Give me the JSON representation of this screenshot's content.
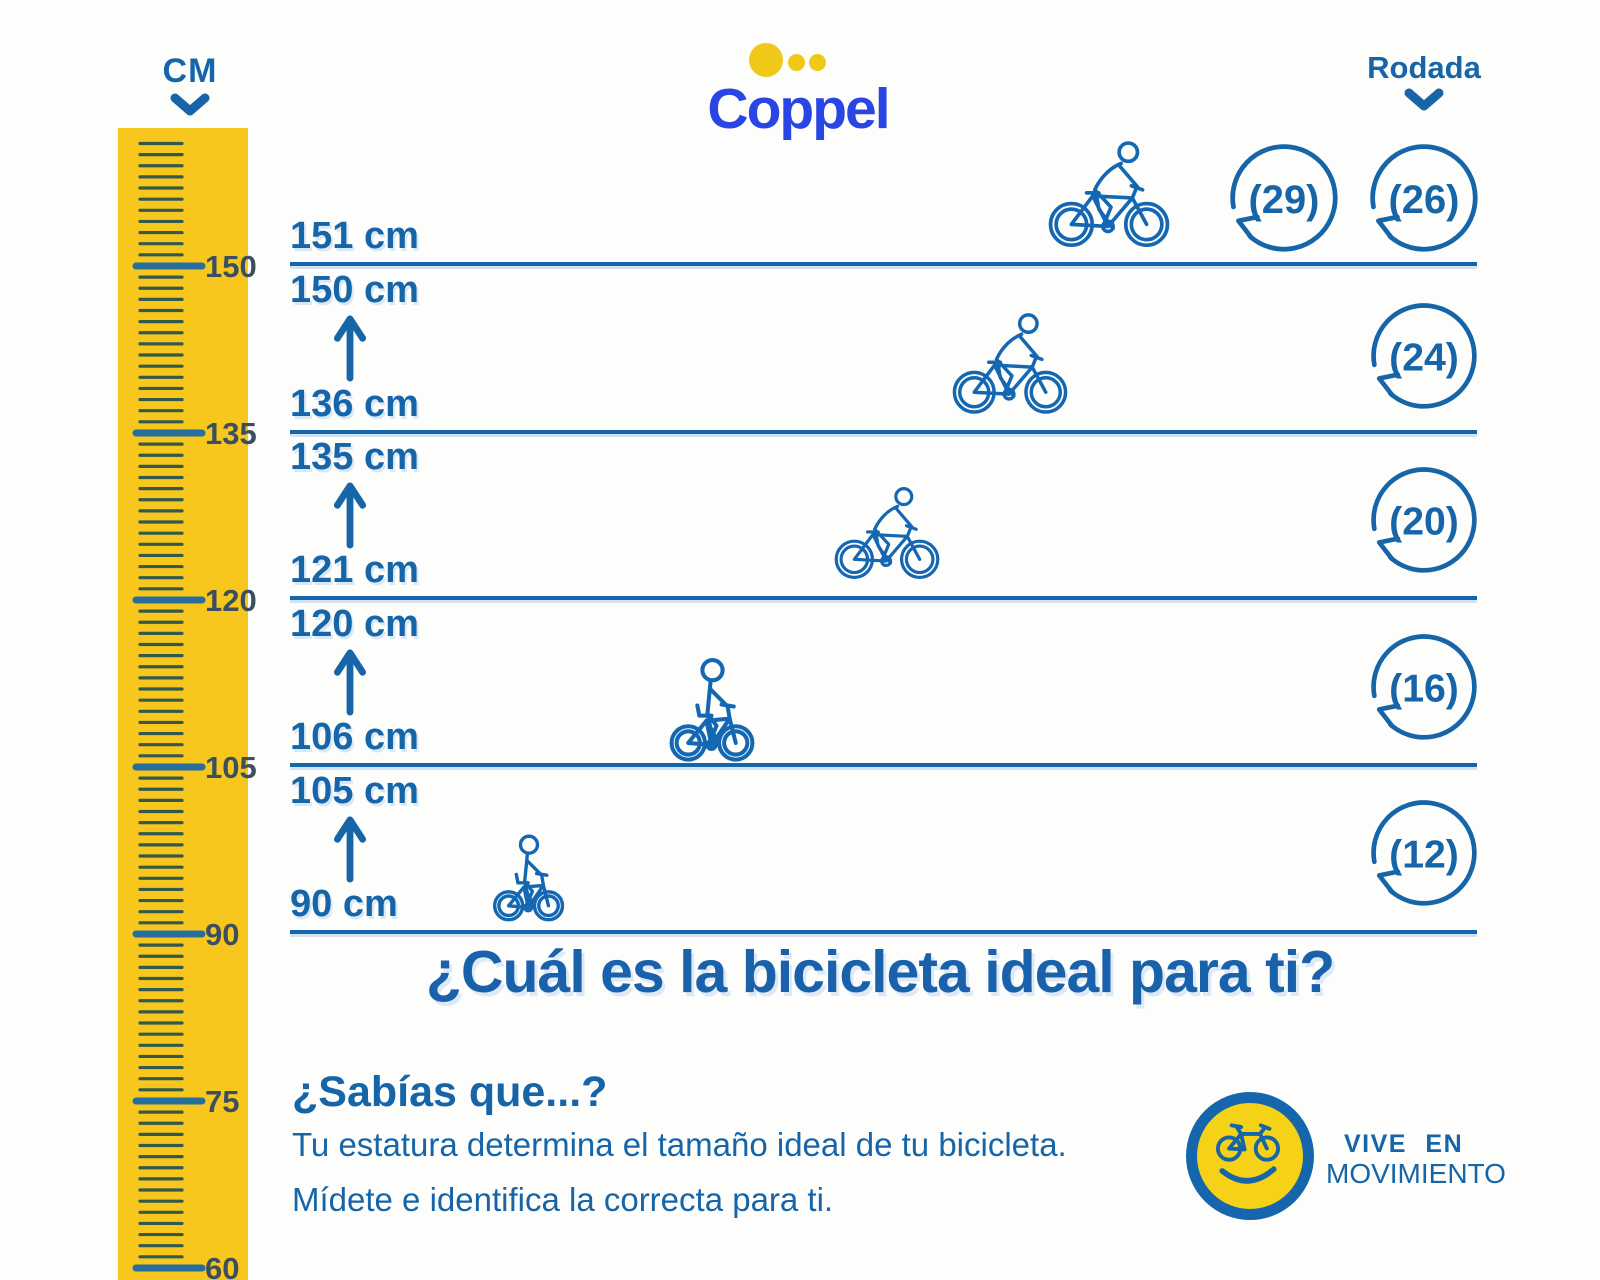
{
  "header": {
    "cm_label": "CM",
    "brand": "Coppel",
    "rodada_label": "Rodada"
  },
  "ruler": {
    "unit": "cm",
    "major_labels": [
      "150",
      "135",
      "120",
      "105",
      "90",
      "75",
      "60"
    ]
  },
  "rows": [
    {
      "height_label": "151 cm",
      "wheel_sizes": [
        "29",
        "26"
      ]
    },
    {
      "height_max_label": "150 cm",
      "height_min_label": "136 cm",
      "wheel_sizes": [
        "24"
      ]
    },
    {
      "height_max_label": "135 cm",
      "height_min_label": "121 cm",
      "wheel_sizes": [
        "20"
      ]
    },
    {
      "height_max_label": "120 cm",
      "height_min_label": "106 cm",
      "wheel_sizes": [
        "16"
      ]
    },
    {
      "height_max_label": "105 cm",
      "height_min_label": "90 cm",
      "wheel_sizes": [
        "12"
      ]
    }
  ],
  "title": "¿Cuál es la bicicleta ideal para ti?",
  "facts": {
    "heading": "¿Sabías que...?",
    "line1": "Tu estatura determina el tamaño ideal de tu bicicleta.",
    "line2": "Mídete e identifica la correcta para ti."
  },
  "badge": {
    "line1": "VIVE EN",
    "line2": "MOVIMIENTO"
  },
  "colors": {
    "main-blue": "#1565a8",
    "coppel-blue": "#2945e4",
    "coppel-yellow": "#f0c81a",
    "ruler-yellow": "#f7c71d",
    "major-tick": "#266f9d",
    "minor-tick": "#33594a",
    "ruler-label": "#3c4f5e",
    "badge-yellow": "#f5d117",
    "badge-ring": "#1566ad"
  }
}
